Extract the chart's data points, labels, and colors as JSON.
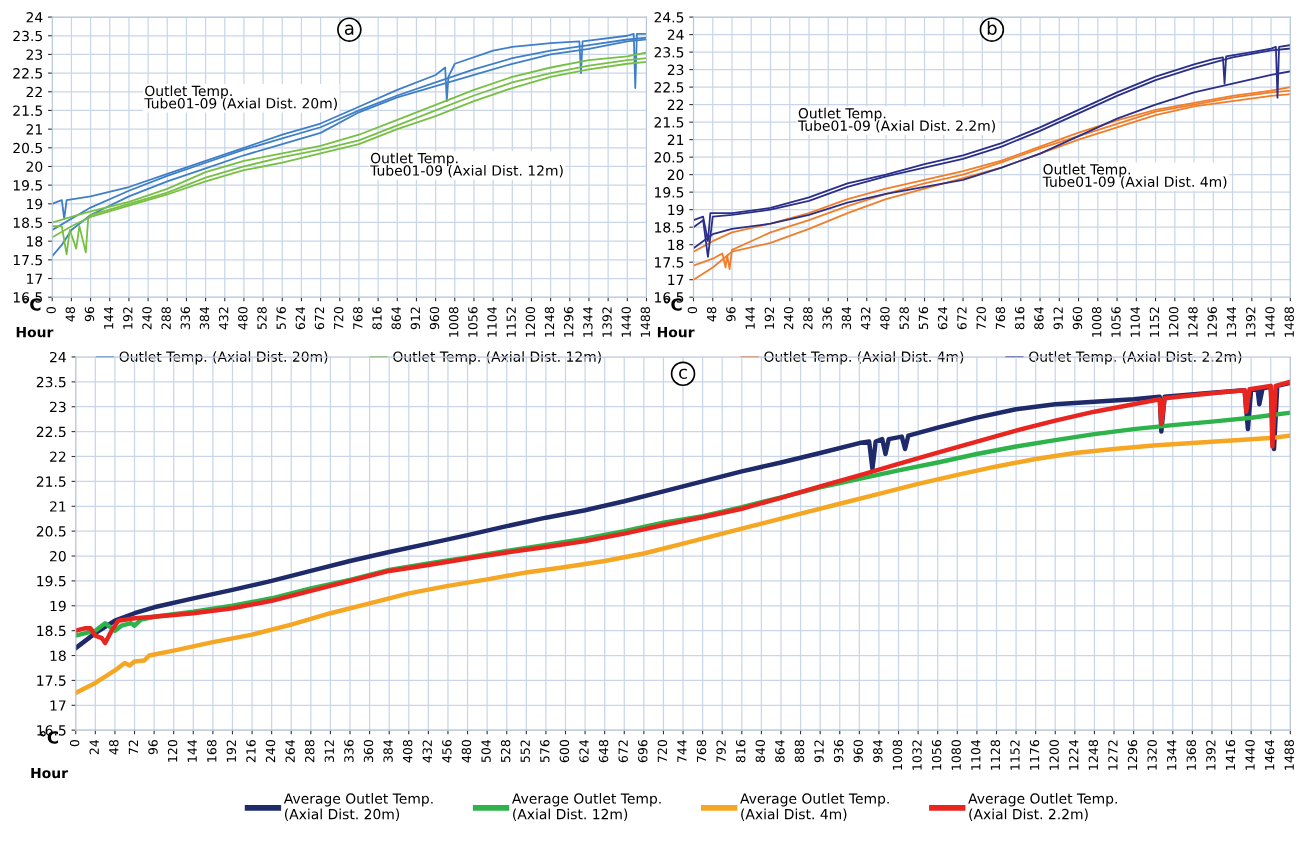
{
  "chart_data": [
    {
      "type": "line",
      "title": "a",
      "xlabel": "Hour",
      "ylabel": "℃",
      "grid": true,
      "legend": "bottom",
      "xlim": [
        0,
        1488
      ],
      "xticks": [
        0,
        48,
        96,
        144,
        192,
        240,
        288,
        336,
        384,
        432,
        480,
        528,
        576,
        624,
        672,
        720,
        768,
        816,
        864,
        912,
        960,
        1008,
        1056,
        1104,
        1152,
        1200,
        1248,
        1296,
        1344,
        1392,
        1440,
        1488
      ],
      "ylim": [
        16.5,
        24
      ],
      "yticks": [
        16.5,
        17,
        17.5,
        18,
        18.5,
        19,
        19.5,
        20,
        20.5,
        21,
        21.5,
        22,
        22.5,
        23,
        23.5,
        24
      ],
      "annotations": [
        "Outlet Temp.\nTube01-09 (Axial Dist. 20m)",
        "Outlet Temp.\nTube01-09 (Axial Dist. 12m)"
      ],
      "series": [
        {
          "name": "Outlet Temp. (Axial Dist. 20m)",
          "color": "#3f7fc8",
          "x": [
            0,
            12,
            24,
            30,
            36,
            96,
            192,
            288,
            384,
            480,
            576,
            672,
            768,
            864,
            960,
            984,
            988,
            992,
            1008,
            1104,
            1152,
            1248,
            1320,
            1324,
            1328,
            1440,
            1456,
            1460,
            1464,
            1488
          ],
          "values": [
            19.0,
            19.05,
            19.1,
            18.6,
            19.1,
            19.2,
            19.45,
            19.8,
            20.15,
            20.5,
            20.85,
            21.15,
            21.6,
            22.05,
            22.45,
            22.65,
            21.75,
            22.4,
            22.75,
            23.1,
            23.2,
            23.3,
            23.35,
            22.5,
            23.35,
            23.5,
            23.55,
            22.1,
            23.55,
            23.55
          ]
        },
        {
          "color": "#3f7fc8",
          "x": [
            0,
            48,
            96,
            192,
            288,
            384,
            480,
            576,
            672,
            768,
            864,
            960,
            1056,
            1152,
            1248,
            1344,
            1440,
            1488
          ],
          "values": [
            18.3,
            18.6,
            18.9,
            19.35,
            19.75,
            20.1,
            20.45,
            20.75,
            21.05,
            21.5,
            21.9,
            22.25,
            22.6,
            22.9,
            23.1,
            23.25,
            23.4,
            23.45
          ]
        },
        {
          "color": "#3f7fc8",
          "x": [
            0,
            24,
            48,
            96,
            192,
            288,
            384,
            480,
            576,
            672,
            768,
            864,
            960,
            1056,
            1152,
            1248,
            1344,
            1440,
            1488
          ],
          "values": [
            17.6,
            17.9,
            18.3,
            18.7,
            19.2,
            19.6,
            19.95,
            20.3,
            20.6,
            20.9,
            21.45,
            21.85,
            22.15,
            22.45,
            22.75,
            23.0,
            23.15,
            23.35,
            23.4
          ]
        },
        {
          "name": "Outlet Temp. (Axial Dist. 12m)",
          "color": "#77c043",
          "x": [
            0,
            48,
            96,
            192,
            288,
            384,
            480,
            576,
            672,
            768,
            864,
            960,
            1056,
            1152,
            1248,
            1344,
            1440,
            1488
          ],
          "values": [
            18.5,
            18.65,
            18.8,
            19.05,
            19.4,
            19.85,
            20.15,
            20.35,
            20.55,
            20.85,
            21.25,
            21.65,
            22.05,
            22.4,
            22.65,
            22.85,
            22.95,
            23.05
          ]
        },
        {
          "color": "#77c043",
          "x": [
            0,
            24,
            36,
            44,
            60,
            68,
            84,
            90,
            96,
            192,
            288,
            384,
            480,
            576,
            672,
            768,
            864,
            960,
            1056,
            1152,
            1248,
            1344,
            1440,
            1488
          ],
          "values": [
            18.4,
            18.4,
            17.65,
            18.3,
            17.8,
            18.4,
            17.7,
            18.6,
            18.7,
            19.0,
            19.3,
            19.7,
            20.0,
            20.25,
            20.45,
            20.7,
            21.1,
            21.5,
            21.9,
            22.25,
            22.5,
            22.7,
            22.85,
            22.9
          ]
        },
        {
          "color": "#77c043",
          "x": [
            0,
            48,
            96,
            192,
            288,
            384,
            480,
            576,
            672,
            768,
            864,
            960,
            1056,
            1152,
            1248,
            1344,
            1440,
            1488
          ],
          "values": [
            18.1,
            18.4,
            18.65,
            18.95,
            19.25,
            19.6,
            19.9,
            20.1,
            20.35,
            20.6,
            21.0,
            21.35,
            21.75,
            22.1,
            22.4,
            22.6,
            22.75,
            22.8
          ]
        }
      ]
    },
    {
      "type": "line",
      "title": "b",
      "xlabel": "Hour",
      "ylabel": "℃",
      "grid": true,
      "legend": "bottom",
      "xlim": [
        0,
        1488
      ],
      "xticks": [
        0,
        48,
        96,
        144,
        192,
        240,
        288,
        336,
        384,
        432,
        480,
        528,
        576,
        624,
        672,
        720,
        768,
        816,
        864,
        912,
        960,
        1008,
        1056,
        1104,
        1152,
        1200,
        1248,
        1296,
        1344,
        1392,
        1440,
        1488
      ],
      "ylim": [
        16.5,
        24.5
      ],
      "yticks": [
        16.5,
        17,
        17.5,
        18,
        18.5,
        19,
        19.5,
        20,
        20.5,
        21,
        21.5,
        22,
        22.5,
        23,
        23.5,
        24,
        24.5
      ],
      "annotations": [
        "Outlet Temp.\nTube01-09 (Axial Dist. 2.2m)",
        "Outlet Temp.\nTube01-09 (Axial Dist. 4m)"
      ],
      "series": [
        {
          "name": "Outlet Temp. (Axial Dist. 4m)",
          "color": "#f07e2b",
          "x": [
            0,
            48,
            96,
            192,
            288,
            384,
            480,
            576,
            672,
            768,
            864,
            960,
            1056,
            1152,
            1248,
            1344,
            1440,
            1488
          ],
          "values": [
            17.8,
            18.1,
            18.35,
            18.6,
            18.9,
            19.3,
            19.6,
            19.85,
            20.1,
            20.4,
            20.8,
            21.2,
            21.55,
            21.85,
            22.05,
            22.25,
            22.4,
            22.5
          ]
        },
        {
          "color": "#f07e2b",
          "x": [
            0,
            48,
            72,
            80,
            84,
            90,
            96,
            192,
            288,
            384,
            480,
            576,
            672,
            768,
            864,
            960,
            1056,
            1152,
            1248,
            1344,
            1440,
            1488
          ],
          "values": [
            17.4,
            17.6,
            17.75,
            17.35,
            17.7,
            17.3,
            17.85,
            18.35,
            18.7,
            19.1,
            19.45,
            19.75,
            20.0,
            20.35,
            20.75,
            21.1,
            21.45,
            21.8,
            22.0,
            22.2,
            22.35,
            22.4
          ]
        },
        {
          "color": "#f07e2b",
          "x": [
            0,
            48,
            96,
            192,
            288,
            384,
            480,
            576,
            672,
            768,
            864,
            960,
            1056,
            1152,
            1248,
            1344,
            1440,
            1488
          ],
          "values": [
            17.0,
            17.35,
            17.8,
            18.05,
            18.45,
            18.9,
            19.3,
            19.6,
            19.9,
            20.2,
            20.6,
            21.0,
            21.35,
            21.7,
            21.95,
            22.1,
            22.25,
            22.3
          ]
        },
        {
          "name": "Outlet Temp. (Axial Dist. 2.2m)",
          "color": "#2b2f8a",
          "x": [
            0,
            24,
            36,
            42,
            96,
            192,
            288,
            384,
            480,
            576,
            672,
            768,
            864,
            960,
            1056,
            1152,
            1248,
            1296,
            1320,
            1324,
            1328,
            1392,
            1440,
            1452,
            1456,
            1460,
            1488
          ],
          "values": [
            18.7,
            18.8,
            18.1,
            18.9,
            18.9,
            19.05,
            19.35,
            19.75,
            20.0,
            20.3,
            20.55,
            20.9,
            21.35,
            21.85,
            22.35,
            22.8,
            23.15,
            23.3,
            23.35,
            22.6,
            23.38,
            23.5,
            23.6,
            23.65,
            22.2,
            23.65,
            23.7
          ]
        },
        {
          "color": "#2b2f8a",
          "x": [
            0,
            24,
            36,
            48,
            96,
            192,
            288,
            384,
            480,
            576,
            672,
            768,
            864,
            960,
            1056,
            1152,
            1248,
            1344,
            1440,
            1488
          ],
          "values": [
            18.5,
            18.7,
            17.65,
            18.8,
            18.85,
            19.0,
            19.25,
            19.65,
            19.95,
            20.2,
            20.45,
            20.8,
            21.25,
            21.75,
            22.25,
            22.7,
            23.05,
            23.35,
            23.55,
            23.6
          ]
        },
        {
          "color": "#2b2f8a",
          "x": [
            0,
            48,
            96,
            192,
            288,
            384,
            480,
            576,
            672,
            768,
            864,
            960,
            1056,
            1152,
            1248,
            1344,
            1440,
            1488
          ],
          "values": [
            17.9,
            18.3,
            18.45,
            18.6,
            18.85,
            19.2,
            19.45,
            19.65,
            19.85,
            20.2,
            20.6,
            21.1,
            21.6,
            22.0,
            22.35,
            22.6,
            22.85,
            22.95
          ]
        }
      ]
    },
    {
      "type": "line",
      "title": "c",
      "xlabel": "Hour",
      "ylabel": "℃",
      "grid": true,
      "legend": "bottom",
      "xlim": [
        0,
        1488
      ],
      "xticks": [
        0,
        24,
        48,
        72,
        96,
        120,
        144,
        168,
        192,
        216,
        240,
        264,
        288,
        312,
        336,
        360,
        384,
        408,
        432,
        456,
        480,
        504,
        528,
        552,
        576,
        600,
        624,
        648,
        672,
        696,
        720,
        744,
        768,
        792,
        816,
        840,
        864,
        888,
        912,
        936,
        960,
        984,
        1008,
        1032,
        1056,
        1080,
        1104,
        1128,
        1152,
        1176,
        1200,
        1224,
        1248,
        1272,
        1296,
        1320,
        1344,
        1368,
        1392,
        1416,
        1440,
        1464,
        1488
      ],
      "ylim": [
        16.5,
        24
      ],
      "yticks": [
        16.5,
        17,
        17.5,
        18,
        18.5,
        19,
        19.5,
        20,
        20.5,
        21,
        21.5,
        22,
        22.5,
        23,
        23.5,
        24
      ],
      "series": [
        {
          "name": "Average Outlet Temp.\n(Axial Dist. 20m)",
          "color": "#1f2a6b",
          "x": [
            0,
            24,
            48,
            72,
            96,
            144,
            192,
            240,
            288,
            336,
            384,
            432,
            480,
            528,
            576,
            624,
            672,
            720,
            768,
            816,
            864,
            912,
            960,
            972,
            976,
            980,
            988,
            992,
            996,
            1012,
            1016,
            1020,
            1056,
            1104,
            1152,
            1200,
            1248,
            1296,
            1328,
            1330,
            1334,
            1392,
            1432,
            1436,
            1440,
            1448,
            1450,
            1454,
            1464,
            1468,
            1472,
            1488
          ],
          "values": [
            18.15,
            18.45,
            18.7,
            18.85,
            18.97,
            19.15,
            19.32,
            19.5,
            19.7,
            19.9,
            20.08,
            20.25,
            20.42,
            20.6,
            20.77,
            20.92,
            21.1,
            21.3,
            21.5,
            21.7,
            21.88,
            22.07,
            22.27,
            22.3,
            21.75,
            22.3,
            22.35,
            22.05,
            22.35,
            22.4,
            22.15,
            22.42,
            22.58,
            22.78,
            22.95,
            23.05,
            23.1,
            23.15,
            23.2,
            22.5,
            23.2,
            23.28,
            23.33,
            22.55,
            23.35,
            23.33,
            23.05,
            23.37,
            23.4,
            22.15,
            23.42,
            23.48
          ]
        },
        {
          "name": "Average Outlet Temp.\n(Axial Dist. 12m)",
          "color": "#2db34a",
          "x": [
            0,
            12,
            24,
            36,
            44,
            48,
            56,
            68,
            72,
            80,
            96,
            144,
            192,
            240,
            288,
            336,
            384,
            432,
            480,
            528,
            576,
            624,
            672,
            720,
            768,
            816,
            864,
            912,
            960,
            1008,
            1056,
            1104,
            1152,
            1200,
            1248,
            1296,
            1344,
            1392,
            1440,
            1488
          ],
          "values": [
            18.4,
            18.45,
            18.5,
            18.65,
            18.55,
            18.5,
            18.6,
            18.65,
            18.6,
            18.72,
            18.78,
            18.88,
            19.0,
            19.15,
            19.35,
            19.52,
            19.72,
            19.85,
            19.97,
            20.1,
            20.22,
            20.35,
            20.5,
            20.67,
            20.8,
            20.98,
            21.18,
            21.38,
            21.55,
            21.72,
            21.88,
            22.05,
            22.2,
            22.33,
            22.45,
            22.55,
            22.63,
            22.7,
            22.78,
            22.88
          ]
        },
        {
          "name": "Average Outlet Temp.\n(Axial Dist. 4m)",
          "color": "#f5a623",
          "x": [
            0,
            24,
            48,
            60,
            66,
            72,
            84,
            90,
            120,
            168,
            216,
            264,
            312,
            360,
            408,
            456,
            504,
            552,
            600,
            648,
            696,
            744,
            792,
            840,
            888,
            936,
            984,
            1032,
            1080,
            1128,
            1176,
            1224,
            1272,
            1320,
            1368,
            1416,
            1464,
            1488
          ],
          "values": [
            17.25,
            17.45,
            17.7,
            17.85,
            17.8,
            17.88,
            17.9,
            18.0,
            18.1,
            18.27,
            18.42,
            18.62,
            18.85,
            19.05,
            19.25,
            19.4,
            19.53,
            19.67,
            19.78,
            19.9,
            20.05,
            20.25,
            20.45,
            20.65,
            20.85,
            21.05,
            21.25,
            21.45,
            21.63,
            21.8,
            21.95,
            22.07,
            22.15,
            22.22,
            22.27,
            22.32,
            22.37,
            22.42
          ]
        },
        {
          "name": "Average Outlet Temp.\n(Axial Dist. 2.2m)",
          "color": "#e8251f",
          "x": [
            0,
            12,
            18,
            24,
            32,
            36,
            44,
            52,
            72,
            96,
            144,
            192,
            240,
            288,
            336,
            384,
            432,
            480,
            528,
            576,
            624,
            672,
            720,
            768,
            816,
            864,
            912,
            960,
            1008,
            1056,
            1104,
            1152,
            1200,
            1248,
            1296,
            1328,
            1330,
            1334,
            1392,
            1432,
            1434,
            1438,
            1464,
            1466,
            1470,
            1488
          ],
          "values": [
            18.5,
            18.55,
            18.55,
            18.4,
            18.35,
            18.25,
            18.5,
            18.7,
            18.75,
            18.78,
            18.85,
            18.95,
            19.1,
            19.3,
            19.5,
            19.7,
            19.82,
            19.95,
            20.07,
            20.18,
            20.3,
            20.45,
            20.62,
            20.78,
            20.95,
            21.17,
            21.4,
            21.62,
            21.85,
            22.08,
            22.3,
            22.52,
            22.72,
            22.9,
            23.05,
            23.15,
            22.65,
            23.17,
            23.27,
            23.33,
            22.9,
            23.35,
            23.42,
            22.2,
            23.42,
            23.5
          ]
        }
      ]
    }
  ]
}
